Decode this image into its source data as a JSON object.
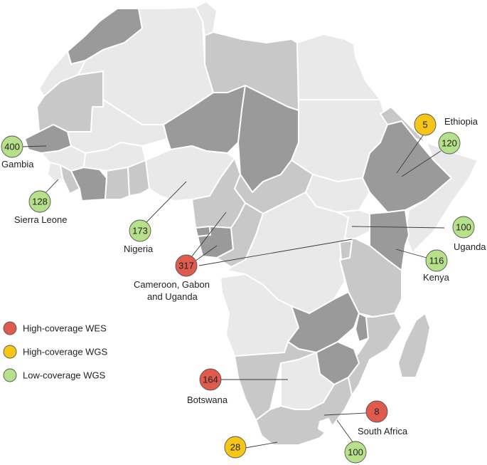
{
  "colors": {
    "high_coverage_wes": "#e05a4e",
    "high_coverage_wgs": "#f5c518",
    "low_coverage_wgs": "#b7e08a",
    "country_light": "#e9e9e9",
    "country_mid": "#c8c8c8",
    "country_dark": "#9a9a9a"
  },
  "legend": [
    {
      "label": "High-coverage WES",
      "color": "#e05a4e"
    },
    {
      "label": "High-coverage WGS",
      "color": "#f5c518"
    },
    {
      "label": "Low-coverage WGS",
      "color": "#b7e08a"
    }
  ],
  "markers": [
    {
      "id": "gambia",
      "count": "400",
      "type": "Low-coverage WGS",
      "label_lines": [
        "Gambia"
      ]
    },
    {
      "id": "sierra-leone",
      "count": "128",
      "type": "Low-coverage WGS",
      "label_lines": [
        "Sierra Leone"
      ]
    },
    {
      "id": "nigeria",
      "count": "173",
      "type": "Low-coverage WGS",
      "label_lines": [
        "Nigeria"
      ]
    },
    {
      "id": "cameroon-gabon-uganda",
      "count": "317",
      "type": "High-coverage WES",
      "label_lines": [
        "Cameroon, Gabon",
        "and Uganda"
      ]
    },
    {
      "id": "ethiopia-wgs",
      "count": "5",
      "type": "High-coverage WGS",
      "label_lines": [
        "Ethiopia"
      ]
    },
    {
      "id": "ethiopia-low",
      "count": "120",
      "type": "Low-coverage WGS",
      "label_lines": []
    },
    {
      "id": "uganda",
      "count": "100",
      "type": "Low-coverage WGS",
      "label_lines": [
        "Uganda"
      ]
    },
    {
      "id": "kenya",
      "count": "116",
      "type": "Low-coverage WGS",
      "label_lines": [
        "Kenya"
      ]
    },
    {
      "id": "botswana",
      "count": "164",
      "type": "High-coverage WES",
      "label_lines": [
        "Botswana"
      ]
    },
    {
      "id": "south-africa-wes",
      "count": "8",
      "type": "High-coverage WES",
      "label_lines": [
        "South Africa"
      ]
    },
    {
      "id": "south-africa-wgs",
      "count": "28",
      "type": "High-coverage WGS",
      "label_lines": []
    },
    {
      "id": "south-africa-low",
      "count": "100",
      "type": "Low-coverage WGS",
      "label_lines": []
    }
  ]
}
